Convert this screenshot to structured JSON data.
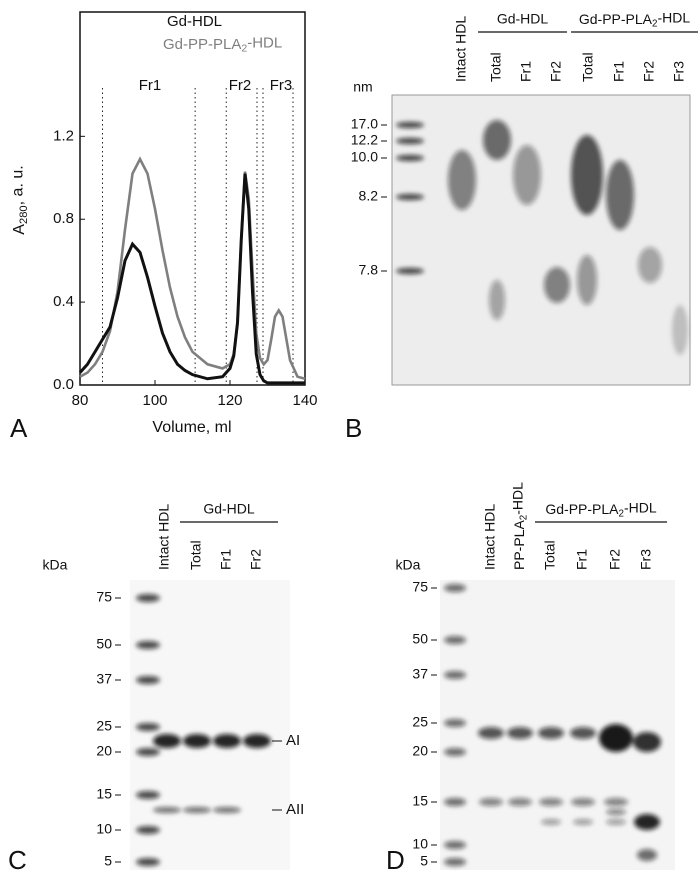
{
  "panel_labels": [
    "A",
    "B",
    "C",
    "D"
  ],
  "chart_data": {
    "type": "line",
    "x": [
      80,
      82,
      84,
      86,
      88,
      90,
      92,
      94,
      96,
      98,
      100,
      102,
      104,
      106,
      108,
      110,
      114,
      118,
      120,
      121,
      122,
      123,
      124,
      125,
      126,
      127,
      128,
      129,
      130,
      131,
      132,
      133,
      134,
      136,
      138,
      140
    ],
    "series": [
      {
        "name": "Gd-HDL",
        "color": "#111111",
        "values": [
          0.06,
          0.1,
          0.16,
          0.22,
          0.28,
          0.42,
          0.6,
          0.68,
          0.64,
          0.52,
          0.38,
          0.25,
          0.16,
          0.1,
          0.07,
          0.05,
          0.03,
          0.04,
          0.08,
          0.14,
          0.3,
          0.7,
          1.02,
          0.85,
          0.45,
          0.15,
          0.05,
          0.02,
          0.01,
          0.01,
          0.01,
          0.01,
          0.01,
          0.01,
          0.01,
          0.01
        ]
      },
      {
        "name": [
          "Gd-PP-PLA",
          "2",
          "-HDL"
        ],
        "color": "#7f7f7f",
        "values": [
          0.04,
          0.06,
          0.1,
          0.16,
          0.26,
          0.45,
          0.75,
          1.02,
          1.09,
          1.02,
          0.85,
          0.65,
          0.47,
          0.33,
          0.23,
          0.16,
          0.1,
          0.08,
          0.1,
          0.15,
          0.3,
          0.7,
          1.03,
          0.9,
          0.55,
          0.25,
          0.13,
          0.1,
          0.12,
          0.22,
          0.33,
          0.36,
          0.33,
          0.12,
          0.04,
          0.03
        ]
      }
    ],
    "xlabel": "Volume, ml",
    "ylabel": [
      "A",
      "280",
      ", a. u."
    ],
    "xlim": [
      80,
      140
    ],
    "xticks": [
      80,
      100,
      120,
      140
    ],
    "ylim": [
      0,
      1.8
    ],
    "yticks": [
      {
        "value": 0,
        "label": "0.0"
      },
      0.4,
      0.8,
      1.2
    ],
    "fraction_bounds": [
      86,
      110.7,
      119,
      127.2,
      128.8,
      136.8
    ],
    "fraction_labels": [
      "Fr1",
      "Fr2",
      "Fr3"
    ]
  },
  "gel_b": {
    "unit": "nm",
    "markers": [
      "17.0",
      "12.2",
      "10.0",
      "8.2",
      "7.8"
    ],
    "lanes": [
      "Intact HDL",
      "Total",
      "Fr1",
      "Fr2",
      "Total",
      "Fr1",
      "Fr2",
      "Fr3"
    ],
    "groups": [
      "Gd-HDL",
      [
        "Gd-PP-PLA",
        "2",
        "-HDL"
      ]
    ]
  },
  "gel_c": {
    "unit": "kDa",
    "markers": [
      "75",
      "50",
      "37",
      "25",
      "20",
      "15",
      "10",
      "5"
    ],
    "lanes": [
      "Intact HDL",
      "Total",
      "Fr1",
      "Fr2"
    ],
    "groups": [
      "Gd-HDL"
    ],
    "band_labels": [
      "AI",
      "AII"
    ]
  },
  "gel_d": {
    "unit": "kDa",
    "markers": [
      "75",
      "50",
      "37",
      "25",
      "20",
      "15",
      "10",
      "5"
    ],
    "lanes": [
      "Intact HDL",
      [
        "PP-PLA",
        "2",
        "-HDL"
      ],
      "Total",
      "Fr1",
      "Fr2",
      "Fr3"
    ],
    "groups": [
      [
        "Gd-PP-PLA",
        "2",
        "-HDL"
      ]
    ]
  }
}
